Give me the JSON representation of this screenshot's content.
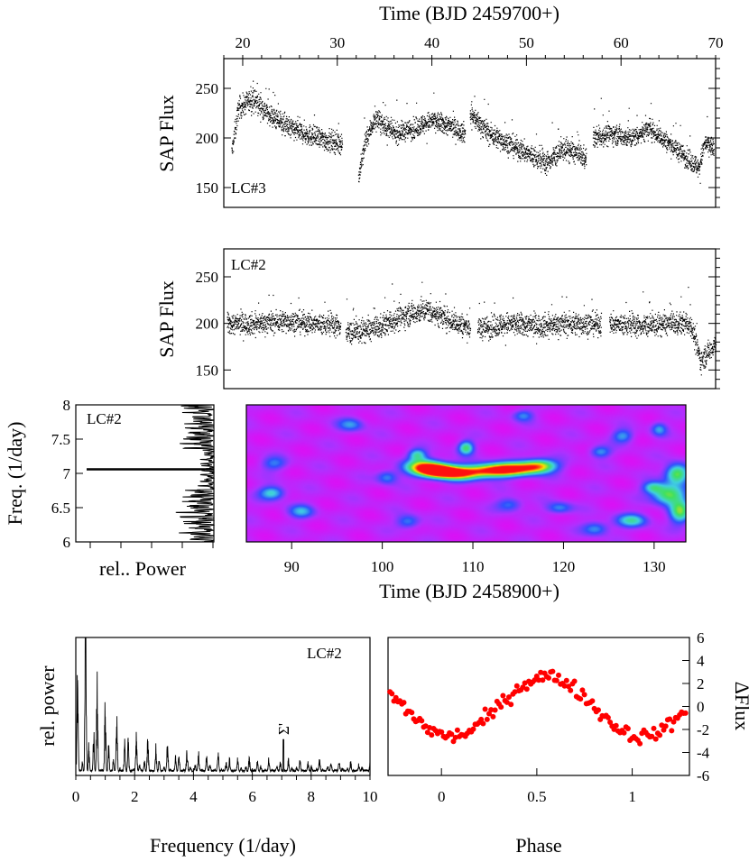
{
  "chart_data": [
    {
      "id": "lc3",
      "type": "scatter",
      "panel_label": "LC#3",
      "title": "",
      "top_xlabel": "Time (BJD 2459700+)",
      "ylabel": "SAP Flux",
      "xlim": [
        18,
        70
      ],
      "ylim": [
        130,
        280
      ],
      "x_ticks": [
        20,
        30,
        40,
        50,
        60,
        70
      ],
      "y_ticks": [
        150,
        200,
        250
      ],
      "segments": [
        {
          "x": [
            18.8,
            30.5
          ],
          "trend": [
            [
              18.8,
              185
            ],
            [
              19.5,
              230
            ],
            [
              21,
              240
            ],
            [
              23,
              222
            ],
            [
              25,
              210
            ],
            [
              28,
              200
            ],
            [
              30.5,
              195
            ]
          ],
          "noise": 14
        },
        {
          "x": [
            32.2,
            43.5
          ],
          "trend": [
            [
              32.2,
              160
            ],
            [
              33,
              200
            ],
            [
              34,
              220
            ],
            [
              36,
              205
            ],
            [
              38,
              210
            ],
            [
              40,
              218
            ],
            [
              42,
              212
            ],
            [
              43.5,
              205
            ]
          ],
          "noise": 13
        },
        {
          "x": [
            44.0,
            56.3
          ],
          "trend": [
            [
              44,
              225
            ],
            [
              46,
              205
            ],
            [
              48,
              195
            ],
            [
              50,
              185
            ],
            [
              52,
              175
            ],
            [
              54,
              190
            ],
            [
              56.3,
              180
            ]
          ],
          "noise": 14
        },
        {
          "x": [
            57.0,
            69.8
          ],
          "trend": [
            [
              57,
              200
            ],
            [
              59,
              205
            ],
            [
              61,
              200
            ],
            [
              63,
              210
            ],
            [
              65,
              195
            ],
            [
              67,
              180
            ],
            [
              68.2,
              170
            ],
            [
              68.8,
              195
            ],
            [
              69.8,
              190
            ]
          ],
          "noise": 13
        }
      ]
    },
    {
      "id": "lc2",
      "type": "scatter",
      "panel_label": "LC#2",
      "ylabel": "SAP Flux",
      "xlim": [
        85,
        133.5
      ],
      "ylim": [
        130,
        280
      ],
      "y_ticks": [
        150,
        200,
        250
      ],
      "segments": [
        {
          "x": [
            85.3,
            96.5
          ],
          "trend": [
            [
              85.3,
              200
            ],
            [
              88,
              200
            ],
            [
              91,
              203
            ],
            [
              94,
              200
            ],
            [
              96.5,
              198
            ]
          ],
          "noise": 15
        },
        {
          "x": [
            97.0,
            109.3
          ],
          "trend": [
            [
              97,
              190
            ],
            [
              100,
              195
            ],
            [
              103,
              210
            ],
            [
              105,
              215
            ],
            [
              107,
              205
            ],
            [
              109.3,
              195
            ]
          ],
          "noise": 16
        },
        {
          "x": [
            110.0,
            122.2
          ],
          "trend": [
            [
              110,
              195
            ],
            [
              113,
              200
            ],
            [
              116,
              198
            ],
            [
              119,
              200
            ],
            [
              122.2,
              200
            ]
          ],
          "noise": 16
        },
        {
          "x": [
            123.0,
            133.5
          ],
          "trend": [
            [
              123,
              200
            ],
            [
              126,
              198
            ],
            [
              129,
              200
            ],
            [
              131,
              200
            ],
            [
              132,
              160
            ],
            [
              133.5,
              180
            ]
          ],
          "noise": 15
        }
      ]
    },
    {
      "id": "periodogram-side",
      "type": "line",
      "panel_label": "LC#2",
      "xlabel": "rel.. Power",
      "ylabel": "Freq. (1/day)",
      "ylim": [
        6,
        8
      ],
      "y_ticks": [
        6,
        6.5,
        7,
        7.5,
        8
      ],
      "peak_frequency": 7.06
    },
    {
      "id": "spectrogram",
      "type": "heatmap",
      "xlabel": "Time (BJD 2458900+)",
      "xlim": [
        85,
        133.5
      ],
      "ylim": [
        6,
        8
      ],
      "x_ticks": [
        90,
        100,
        110,
        120,
        130
      ],
      "colormap": [
        "#f000f0",
        "#b030ff",
        "#3050ff",
        "#40d0e0",
        "#40e060",
        "#ffe000",
        "#ff1010"
      ],
      "blobs": [
        {
          "t": 106.2,
          "f": 7.04,
          "a": 1.0,
          "st": 1.4,
          "sf": 0.07
        },
        {
          "t": 104.5,
          "f": 7.1,
          "a": 0.7,
          "st": 1.5,
          "sf": 0.08
        },
        {
          "t": 108.5,
          "f": 7.0,
          "a": 0.6,
          "st": 1.5,
          "sf": 0.07
        },
        {
          "t": 111.5,
          "f": 7.04,
          "a": 0.7,
          "st": 2.0,
          "sf": 0.07
        },
        {
          "t": 114.5,
          "f": 7.07,
          "a": 0.72,
          "st": 2.0,
          "sf": 0.07
        },
        {
          "t": 117.3,
          "f": 7.12,
          "a": 0.62,
          "st": 1.4,
          "sf": 0.07
        },
        {
          "t": 109.2,
          "f": 7.38,
          "a": 0.52,
          "st": 0.6,
          "sf": 0.07
        },
        {
          "t": 103.8,
          "f": 7.28,
          "a": 0.42,
          "st": 0.7,
          "sf": 0.06
        },
        {
          "t": 132.5,
          "f": 7.0,
          "a": 0.62,
          "st": 0.9,
          "sf": 0.1
        },
        {
          "t": 131.5,
          "f": 6.7,
          "a": 0.6,
          "st": 1.2,
          "sf": 0.1
        },
        {
          "t": 132.8,
          "f": 6.45,
          "a": 0.55,
          "st": 0.8,
          "sf": 0.12
        },
        {
          "t": 127.5,
          "f": 6.32,
          "a": 0.42,
          "st": 1.2,
          "sf": 0.07
        },
        {
          "t": 129.8,
          "f": 6.8,
          "a": 0.38,
          "st": 0.8,
          "sf": 0.06
        },
        {
          "t": 87.8,
          "f": 6.72,
          "a": 0.42,
          "st": 1.0,
          "sf": 0.07
        },
        {
          "t": 91.0,
          "f": 6.45,
          "a": 0.32,
          "st": 1.0,
          "sf": 0.07
        },
        {
          "t": 96.5,
          "f": 7.72,
          "a": 0.3,
          "st": 1.0,
          "sf": 0.07
        },
        {
          "t": 100.5,
          "f": 6.95,
          "a": 0.3,
          "st": 0.8,
          "sf": 0.07
        },
        {
          "t": 119.5,
          "f": 6.5,
          "a": 0.3,
          "st": 1.0,
          "sf": 0.06
        },
        {
          "t": 123.5,
          "f": 6.2,
          "a": 0.32,
          "st": 1.0,
          "sf": 0.07
        },
        {
          "t": 124.0,
          "f": 7.32,
          "a": 0.32,
          "st": 0.8,
          "sf": 0.06
        },
        {
          "t": 126.5,
          "f": 7.55,
          "a": 0.32,
          "st": 0.8,
          "sf": 0.07
        },
        {
          "t": 102.8,
          "f": 6.3,
          "a": 0.3,
          "st": 0.9,
          "sf": 0.07
        },
        {
          "t": 114.0,
          "f": 6.55,
          "a": 0.28,
          "st": 1.0,
          "sf": 0.07
        },
        {
          "t": 130.5,
          "f": 7.65,
          "a": 0.3,
          "st": 0.6,
          "sf": 0.07
        },
        {
          "t": 115.5,
          "f": 7.85,
          "a": 0.28,
          "st": 0.8,
          "sf": 0.06
        },
        {
          "t": 88.0,
          "f": 7.15,
          "a": 0.26,
          "st": 1.0,
          "sf": 0.07
        }
      ]
    },
    {
      "id": "periodogram",
      "type": "line",
      "panel_label": "LC#2",
      "xlabel": "Frequency (1/day)",
      "ylabel": "rel. power",
      "xlim": [
        0,
        10
      ],
      "x_ticks": [
        0,
        2,
        4,
        6,
        8,
        10
      ],
      "peak_frequency": 7.06,
      "peak_marker": "Σ'"
    },
    {
      "id": "phase",
      "type": "scatter",
      "xlabel": "Phase",
      "ylabel": "ΔFlux",
      "xlim": [
        -0.28,
        1.3
      ],
      "ylim": [
        -6,
        6
      ],
      "x_ticks": [
        0,
        0.5,
        1
      ],
      "y_ticks": [
        -6,
        -4,
        -2,
        0,
        2,
        4,
        6
      ],
      "point_color": "#ff0000",
      "amplitude": 2.6,
      "peak_phase": 0.55
    }
  ]
}
